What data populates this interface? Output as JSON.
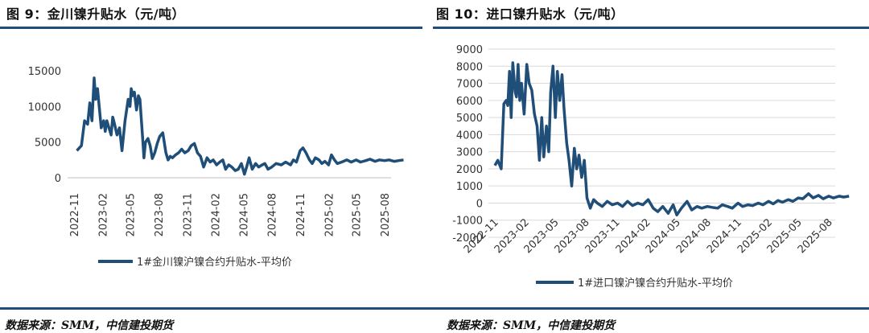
{
  "panels": [
    {
      "title": "图 9：金川镍升贴水（元/吨）",
      "source": "数据来源：SMM，中信建投期货"
    },
    {
      "title": "图 10：进口镍升贴水（元/吨）",
      "source": "数据来源：SMM，中信建投期货"
    }
  ],
  "chart_data": [
    {
      "type": "line",
      "title": "",
      "xlabel": "",
      "ylabel": "",
      "ylim": [
        0,
        15000
      ],
      "yticks": [
        "15000",
        "10000",
        "5000",
        "0"
      ],
      "xtick_labels": [
        "2022-11",
        "2023-02",
        "2023-05",
        "2023-08",
        "2023-11",
        "2024-02",
        "2024-05",
        "2024-08",
        "2024-11",
        "2025-02",
        "2025-05",
        "2025-08"
      ],
      "grid": false,
      "legend_position": "bottom",
      "line_color": "#1f4e79",
      "series": [
        {
          "name": "1#金川镍沪镍合约升贴水-平均价",
          "x": [
            "2022-11-10",
            "2022-11-25",
            "2022-12-05",
            "2022-12-15",
            "2022-12-22",
            "2022-12-29",
            "2023-01-05",
            "2023-01-10",
            "2023-01-16",
            "2023-01-28",
            "2023-02-05",
            "2023-02-10",
            "2023-02-15",
            "2023-02-22",
            "2023-03-01",
            "2023-03-06",
            "2023-03-12",
            "2023-03-20",
            "2023-03-28",
            "2023-04-05",
            "2023-04-15",
            "2023-04-25",
            "2023-05-01",
            "2023-05-05",
            "2023-05-10",
            "2023-05-15",
            "2023-05-22",
            "2023-05-28",
            "2023-06-02",
            "2023-06-10",
            "2023-06-15",
            "2023-06-20",
            "2023-06-28",
            "2023-07-05",
            "2023-07-12",
            "2023-07-20",
            "2023-07-28",
            "2023-08-05",
            "2023-08-15",
            "2023-08-25",
            "2023-09-01",
            "2023-09-08",
            "2023-09-15",
            "2023-09-25",
            "2023-10-05",
            "2023-10-15",
            "2023-10-25",
            "2023-11-05",
            "2023-11-15",
            "2023-11-25",
            "2023-12-05",
            "2023-12-15",
            "2023-12-25",
            "2024-01-05",
            "2024-01-15",
            "2024-01-25",
            "2024-02-05",
            "2024-02-15",
            "2024-02-25",
            "2024-03-05",
            "2024-03-15",
            "2024-03-25",
            "2024-04-05",
            "2024-04-15",
            "2024-04-25",
            "2024-05-05",
            "2024-05-12",
            "2024-05-20",
            "2024-05-30",
            "2024-06-10",
            "2024-06-20",
            "2024-07-01",
            "2024-07-10",
            "2024-07-20",
            "2024-08-01",
            "2024-08-15",
            "2024-09-01",
            "2024-09-15",
            "2024-10-01",
            "2024-10-10",
            "2024-10-20",
            "2024-11-01",
            "2024-11-10",
            "2024-11-20",
            "2024-12-01",
            "2024-12-10",
            "2024-12-20",
            "2025-01-01",
            "2025-01-10",
            "2025-01-20",
            "2025-02-01",
            "2025-02-10",
            "2025-02-20",
            "2025-03-01",
            "2025-03-15",
            "2025-04-01",
            "2025-04-15",
            "2025-05-01",
            "2025-05-15",
            "2025-06-01",
            "2025-06-15",
            "2025-07-01",
            "2025-07-15",
            "2025-08-01",
            "2025-08-15",
            "2025-09-01",
            "2025-09-15",
            "2025-10-01"
          ],
          "y": [
            3800,
            4500,
            8000,
            7500,
            10500,
            8000,
            14000,
            11000,
            12500,
            7000,
            8000,
            6500,
            8000,
            7000,
            6000,
            8500,
            7500,
            6000,
            7000,
            3800,
            8000,
            11000,
            10000,
            12500,
            11500,
            12000,
            9500,
            11500,
            11000,
            6000,
            2800,
            5000,
            5500,
            4500,
            2700,
            3500,
            4800,
            5800,
            6300,
            3500,
            2500,
            3000,
            2800,
            3200,
            3500,
            4000,
            3500,
            3800,
            4500,
            4800,
            3500,
            3000,
            1500,
            2800,
            2200,
            2500,
            1800,
            2200,
            2500,
            1200,
            1800,
            1500,
            1000,
            1200,
            2000,
            500,
            1500,
            2800,
            1200,
            2000,
            1500,
            1800,
            2000,
            1200,
            1500,
            2000,
            1800,
            2200,
            1800,
            2500,
            2200,
            3800,
            4200,
            3500,
            2500,
            2000,
            2800,
            2500,
            2000,
            2300,
            1800,
            3200,
            2500,
            2000,
            2200,
            2500,
            2200,
            2500,
            2200,
            2400,
            2600,
            2300,
            2500,
            2400,
            2500,
            2300,
            2400,
            2500
          ]
        }
      ]
    },
    {
      "type": "line",
      "title": "",
      "xlabel": "",
      "ylabel": "",
      "ylim": [
        -2000,
        9000
      ],
      "yticks": [
        "9000",
        "8000",
        "7000",
        "6000",
        "5000",
        "4000",
        "3000",
        "2000",
        "1000",
        "0",
        "-1000",
        "-2000"
      ],
      "xtick_labels": [
        "2022-11",
        "2023-02",
        "2023-05",
        "2023-08",
        "2023-11",
        "2024-02",
        "2024-05",
        "2024-08",
        "2024-11",
        "2025-02",
        "2025-05",
        "2025-08"
      ],
      "grid": true,
      "legend_position": "bottom",
      "line_color": "#1f4e79",
      "series": [
        {
          "name": "1#进口镍沪镍合约升贴水-平均价",
          "x": [
            "2022-11-01",
            "2022-11-10",
            "2022-11-20",
            "2022-11-28",
            "2022-12-05",
            "2022-12-10",
            "2022-12-15",
            "2022-12-20",
            "2022-12-25",
            "2023-01-01",
            "2023-01-05",
            "2023-01-10",
            "2023-01-15",
            "2023-01-20",
            "2023-01-28",
            "2023-02-05",
            "2023-02-12",
            "2023-02-20",
            "2023-02-28",
            "2023-03-08",
            "2023-03-15",
            "2023-03-22",
            "2023-03-28",
            "2023-04-05",
            "2023-04-12",
            "2023-04-18",
            "2023-04-25",
            "2023-05-02",
            "2023-05-08",
            "2023-05-15",
            "2023-05-22",
            "2023-05-28",
            "2023-06-05",
            "2023-06-12",
            "2023-06-20",
            "2023-06-28",
            "2023-07-05",
            "2023-07-12",
            "2023-07-20",
            "2023-07-28",
            "2023-08-05",
            "2023-08-15",
            "2023-08-25",
            "2023-09-05",
            "2023-09-20",
            "2023-10-05",
            "2023-10-20",
            "2023-11-05",
            "2023-11-20",
            "2023-12-05",
            "2023-12-20",
            "2024-01-05",
            "2024-01-20",
            "2024-02-05",
            "2024-02-20",
            "2024-03-05",
            "2024-03-20",
            "2024-04-05",
            "2024-04-20",
            "2024-05-01",
            "2024-05-15",
            "2024-06-01",
            "2024-06-15",
            "2024-07-01",
            "2024-07-15",
            "2024-08-01",
            "2024-08-15",
            "2024-09-01",
            "2024-09-15",
            "2024-10-01",
            "2024-10-15",
            "2024-11-01",
            "2024-11-15",
            "2024-12-01",
            "2024-12-15",
            "2025-01-01",
            "2025-01-15",
            "2025-02-01",
            "2025-02-15",
            "2025-03-01",
            "2025-03-15",
            "2025-04-01",
            "2025-04-15",
            "2025-05-01",
            "2025-05-15",
            "2025-06-01",
            "2025-06-15",
            "2025-07-01",
            "2025-07-15",
            "2025-08-01",
            "2025-08-15",
            "2025-09-01",
            "2025-09-15",
            "2025-10-01"
          ],
          "y": [
            2200,
            2500,
            2000,
            5800,
            6000,
            5700,
            7700,
            5000,
            8200,
            6500,
            6200,
            8100,
            6000,
            7000,
            5200,
            8100,
            7000,
            6600,
            5200,
            4500,
            2500,
            5000,
            2700,
            4500,
            3000,
            6500,
            8000,
            5000,
            7700,
            6000,
            7500,
            5500,
            3500,
            2500,
            1000,
            3200,
            2000,
            2800,
            1500,
            2500,
            300,
            -300,
            200,
            0,
            -200,
            100,
            -100,
            0,
            -200,
            100,
            -150,
            0,
            -100,
            200,
            -300,
            -500,
            -200,
            -600,
            -100,
            -700,
            -300,
            100,
            -400,
            -200,
            -300,
            -200,
            -250,
            -300,
            -100,
            -200,
            -300,
            0,
            -200,
            -100,
            -150,
            0,
            -100,
            100,
            -50,
            150,
            50,
            200,
            100,
            300,
            250,
            550,
            300,
            450,
            250,
            400,
            300,
            400,
            350,
            400
          ]
        }
      ]
    }
  ]
}
